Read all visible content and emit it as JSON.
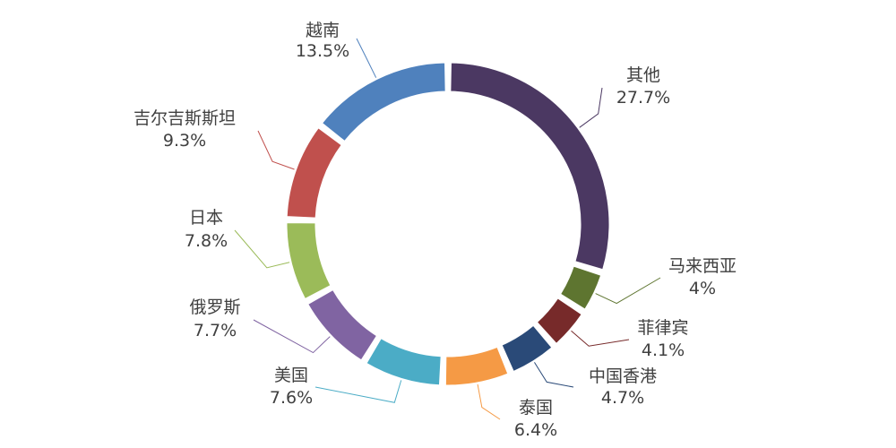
{
  "chart_data": {
    "type": "pie",
    "variant": "donut",
    "title": "",
    "start_angle_deg": 0,
    "direction": "clockwise",
    "slices": [
      {
        "label": "其他",
        "value": 27.7,
        "display": "27.7%",
        "color": "#4b3862"
      },
      {
        "label": "马来西亚",
        "value": 4.0,
        "display": "4%",
        "color": "#5e7530"
      },
      {
        "label": "菲律宾",
        "value": 4.1,
        "display": "4.1%",
        "color": "#772a2a"
      },
      {
        "label": "中国香港",
        "value": 4.7,
        "display": "4.7%",
        "color": "#2a4a78"
      },
      {
        "label": "泰国",
        "value": 6.4,
        "display": "6.4%",
        "color": "#f59a45"
      },
      {
        "label": "美国",
        "value": 7.6,
        "display": "7.6%",
        "color": "#4bacc6"
      },
      {
        "label": "俄罗斯",
        "value": 7.7,
        "display": "7.7%",
        "color": "#8064a2"
      },
      {
        "label": "日本",
        "value": 7.8,
        "display": "7.8%",
        "color": "#9bbb59"
      },
      {
        "label": "吉尔吉斯斯坦",
        "value": 9.3,
        "display": "9.3%",
        "color": "#c0504d"
      },
      {
        "label": "越南",
        "value": 13.5,
        "display": "13.5%",
        "color": "#4f81bd"
      }
    ],
    "color_order_note": "",
    "legend": "none"
  }
}
